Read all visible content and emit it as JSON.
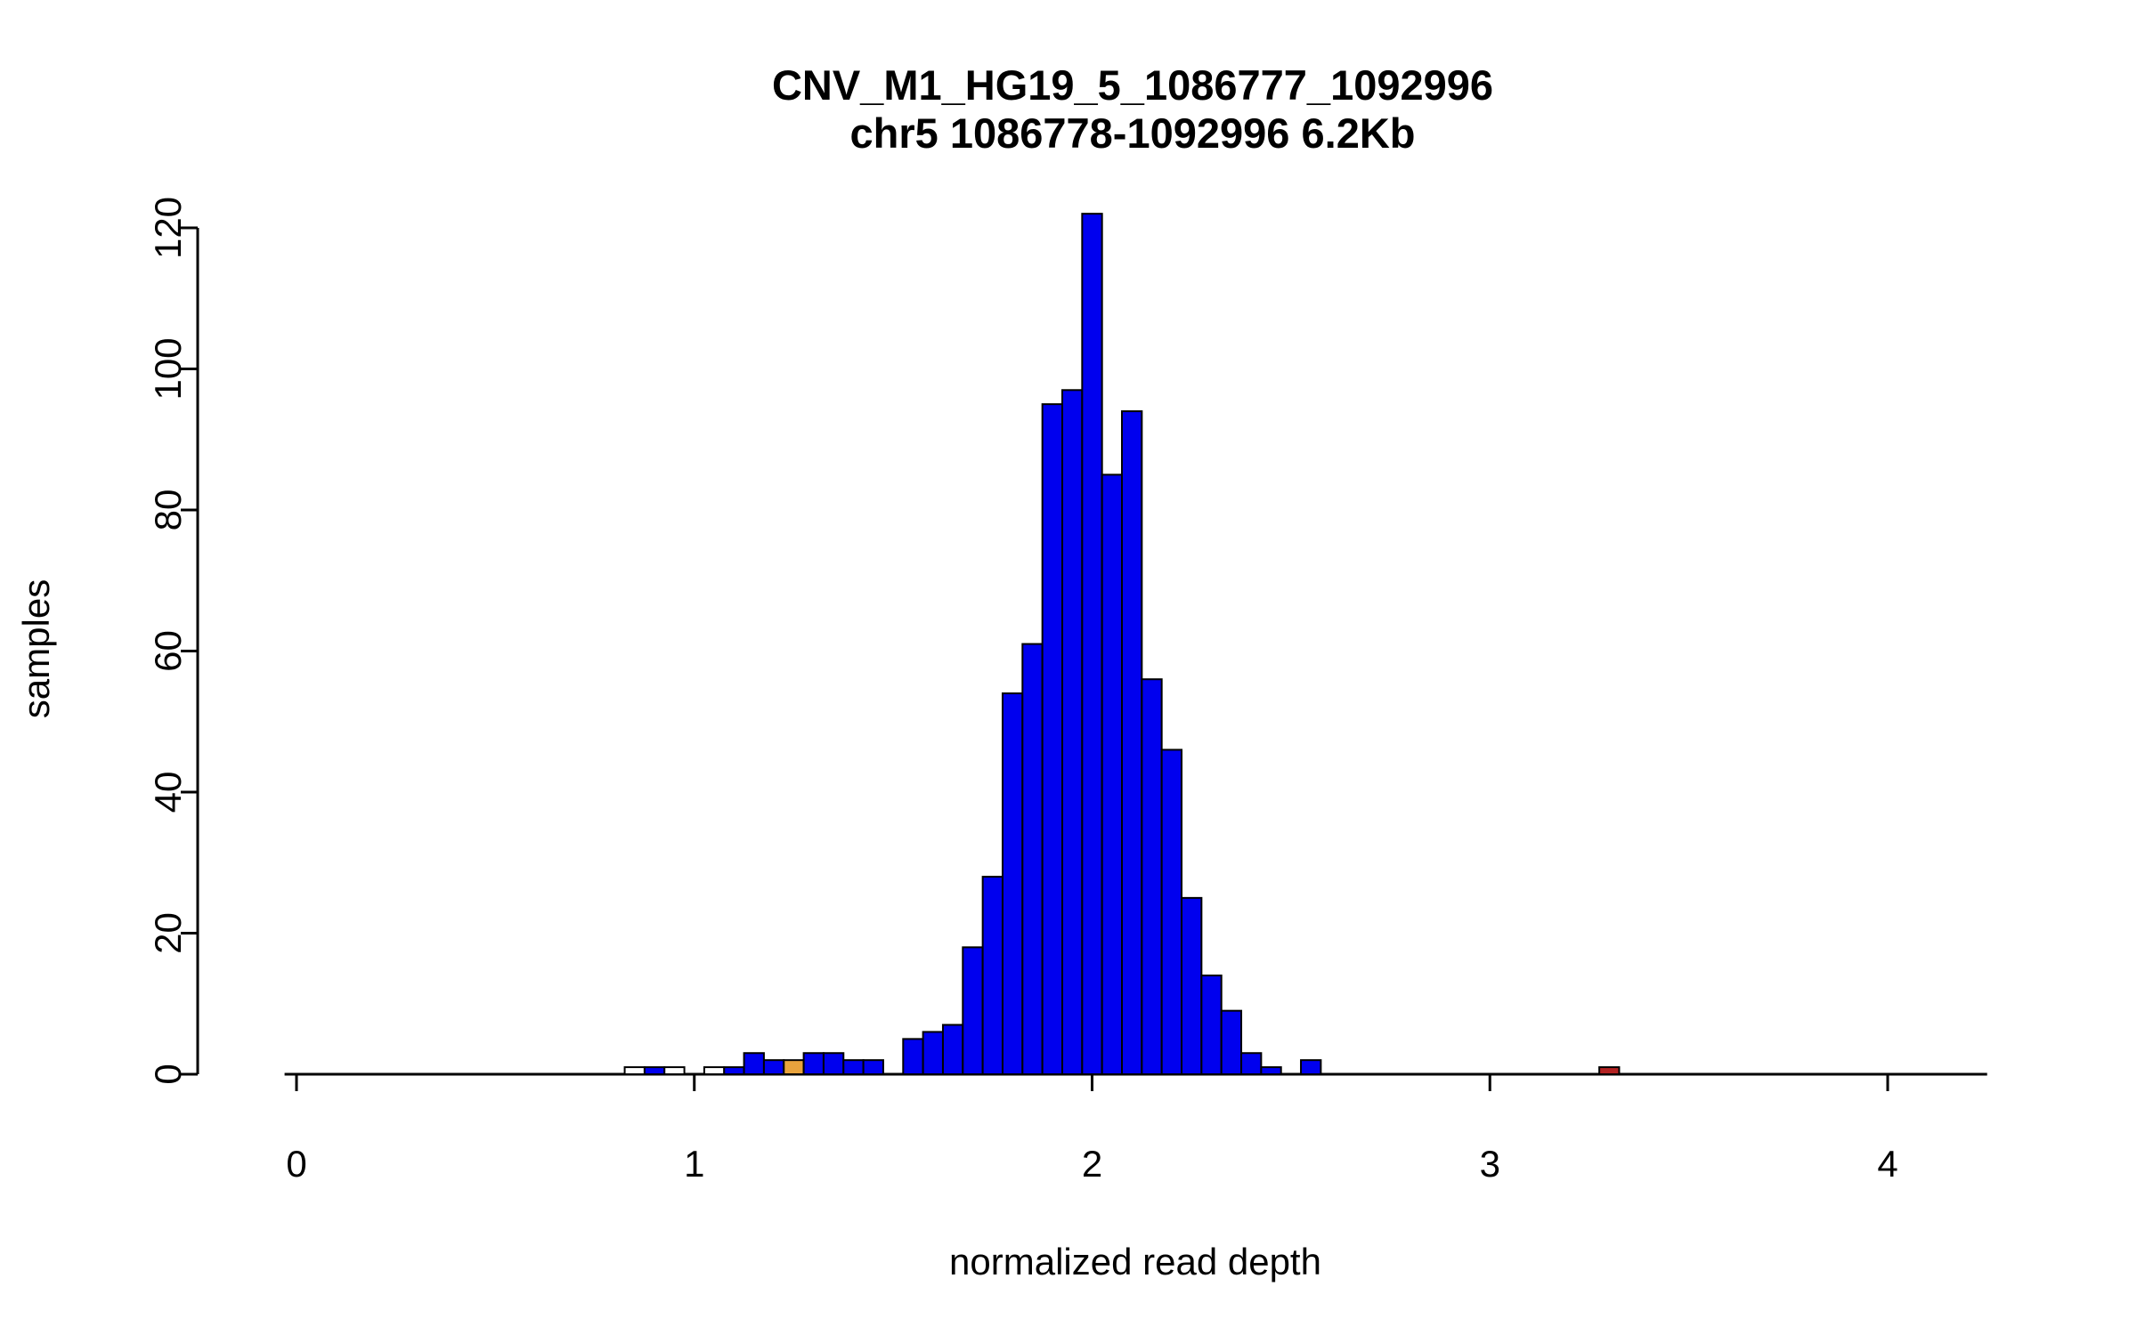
{
  "chart_data": {
    "type": "bar",
    "subtype": "histogram",
    "title": "CNV_M1_HG19_5_1086777_1092996",
    "subtitle": "chr5 1086778-1092996 6.2Kb",
    "xlabel": "normalized read depth",
    "ylabel": "samples",
    "xlim": [
      0,
      4.25
    ],
    "ylim": [
      0,
      122
    ],
    "xticks": [
      0,
      1,
      2,
      3,
      4
    ],
    "yticks": [
      0,
      20,
      40,
      60,
      80,
      100,
      120
    ],
    "bin_width": 0.05,
    "grid": false,
    "legend": "none",
    "colors": {
      "blue": "#0000EE",
      "white": "#FFFFFF",
      "orange": "#E8A33D",
      "red": "#B22222",
      "bar_border": "#000000",
      "axis": "#000000"
    },
    "bars": [
      {
        "center": 0.85,
        "height": 1,
        "color": "white"
      },
      {
        "center": 0.9,
        "height": 1,
        "color": "blue"
      },
      {
        "center": 0.95,
        "height": 1,
        "color": "white"
      },
      {
        "center": 1.05,
        "height": 1,
        "color": "white"
      },
      {
        "center": 1.1,
        "height": 1,
        "color": "blue"
      },
      {
        "center": 1.15,
        "height": 3,
        "color": "blue"
      },
      {
        "center": 1.2,
        "height": 2,
        "color": "blue"
      },
      {
        "center": 1.25,
        "height": 2,
        "color": "orange"
      },
      {
        "center": 1.3,
        "height": 3,
        "color": "blue"
      },
      {
        "center": 1.35,
        "height": 3,
        "color": "blue"
      },
      {
        "center": 1.4,
        "height": 2,
        "color": "blue"
      },
      {
        "center": 1.45,
        "height": 2,
        "color": "blue"
      },
      {
        "center": 1.55,
        "height": 5,
        "color": "blue"
      },
      {
        "center": 1.6,
        "height": 6,
        "color": "blue"
      },
      {
        "center": 1.65,
        "height": 7,
        "color": "blue"
      },
      {
        "center": 1.7,
        "height": 18,
        "color": "blue"
      },
      {
        "center": 1.75,
        "height": 28,
        "color": "blue"
      },
      {
        "center": 1.8,
        "height": 54,
        "color": "blue"
      },
      {
        "center": 1.85,
        "height": 61,
        "color": "blue"
      },
      {
        "center": 1.9,
        "height": 95,
        "color": "blue"
      },
      {
        "center": 1.95,
        "height": 97,
        "color": "blue"
      },
      {
        "center": 2.0,
        "height": 122,
        "color": "blue"
      },
      {
        "center": 2.05,
        "height": 85,
        "color": "blue"
      },
      {
        "center": 2.1,
        "height": 94,
        "color": "blue"
      },
      {
        "center": 2.15,
        "height": 56,
        "color": "blue"
      },
      {
        "center": 2.2,
        "height": 46,
        "color": "blue"
      },
      {
        "center": 2.25,
        "height": 25,
        "color": "blue"
      },
      {
        "center": 2.3,
        "height": 14,
        "color": "blue"
      },
      {
        "center": 2.35,
        "height": 9,
        "color": "blue"
      },
      {
        "center": 2.4,
        "height": 3,
        "color": "blue"
      },
      {
        "center": 2.45,
        "height": 1,
        "color": "blue"
      },
      {
        "center": 2.55,
        "height": 2,
        "color": "blue"
      },
      {
        "center": 3.3,
        "height": 1,
        "color": "red"
      }
    ]
  }
}
